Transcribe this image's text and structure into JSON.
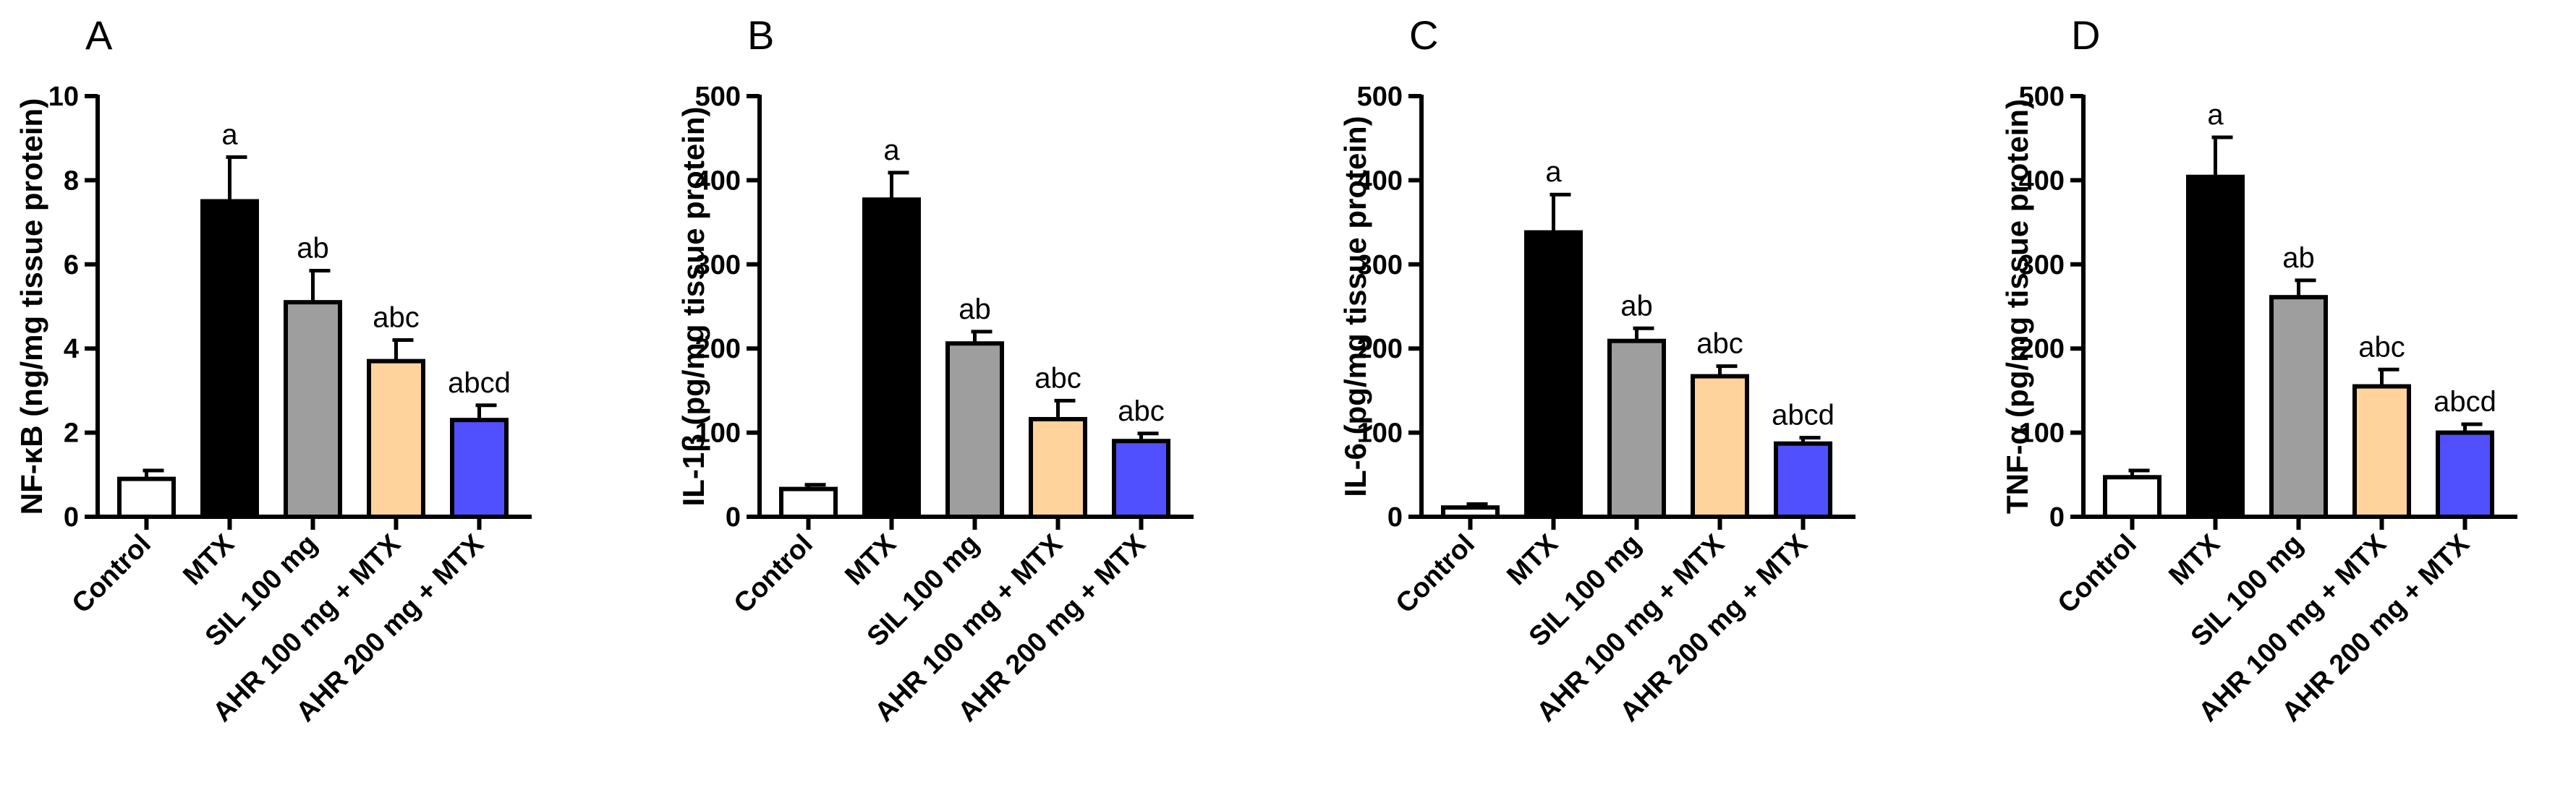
{
  "chart_data": [
    {
      "type": "bar",
      "panel": "A",
      "ylabel": "NF-κB (ng/mg tissue protein)",
      "ylim": [
        0,
        10
      ],
      "yticks": [
        0,
        2,
        4,
        6,
        8,
        10
      ],
      "categories": [
        "Control",
        "MTX",
        "SIL 100 mg",
        "AHR 100 mg + MTX",
        "AHR 200 mg + MTX"
      ],
      "values": [
        0.9,
        7.5,
        5.1,
        3.7,
        2.3
      ],
      "errors": [
        0.2,
        1.05,
        0.75,
        0.5,
        0.35
      ],
      "sig_labels": [
        "",
        "a",
        "ab",
        "abc",
        "abcd"
      ],
      "colors": [
        "#ffffff",
        "#000000",
        "#9e9e9e",
        "#ffd39b",
        "#5150ff"
      ]
    },
    {
      "type": "bar",
      "panel": "B",
      "ylabel": "IL-1β (pg/mg tissue protein)",
      "ylim": [
        0,
        500
      ],
      "yticks": [
        0,
        100,
        200,
        300,
        400,
        500
      ],
      "categories": [
        "Control",
        "MTX",
        "SIL 100 mg",
        "AHR 100 mg + MTX",
        "AHR 200 mg + MTX"
      ],
      "values": [
        33,
        377,
        206,
        116,
        90
      ],
      "errors": [
        5,
        32,
        14,
        22,
        9
      ],
      "sig_labels": [
        "",
        "a",
        "ab",
        "abc",
        "abc"
      ],
      "colors": [
        "#ffffff",
        "#000000",
        "#9e9e9e",
        "#ffd39b",
        "#5150ff"
      ]
    },
    {
      "type": "bar",
      "panel": "C",
      "ylabel": "IL-6 (pg/mg tissue protein)",
      "ylim": [
        0,
        500
      ],
      "yticks": [
        0,
        100,
        200,
        300,
        400,
        500
      ],
      "categories": [
        "Control",
        "MTX",
        "SIL 100 mg",
        "AHR 100 mg + MTX",
        "AHR 200 mg + MTX"
      ],
      "values": [
        11,
        338,
        209,
        167,
        87
      ],
      "errors": [
        4,
        45,
        15,
        12,
        7
      ],
      "sig_labels": [
        "",
        "a",
        "ab",
        "abc",
        "abcd"
      ],
      "colors": [
        "#ffffff",
        "#000000",
        "#9e9e9e",
        "#ffd39b",
        "#5150ff"
      ]
    },
    {
      "type": "bar",
      "panel": "D",
      "ylabel": "TNF-α (pg/mg tissue protein)",
      "ylim": [
        0,
        500
      ],
      "yticks": [
        0,
        100,
        200,
        300,
        400,
        500
      ],
      "categories": [
        "Control",
        "MTX",
        "SIL 100 mg",
        "AHR 100 mg + MTX",
        "AHR 200 mg + MTX"
      ],
      "values": [
        47,
        404,
        261,
        155,
        100
      ],
      "errors": [
        8,
        47,
        20,
        20,
        10
      ],
      "sig_labels": [
        "",
        "a",
        "ab",
        "abc",
        "abcd"
      ],
      "colors": [
        "#ffffff",
        "#000000",
        "#9e9e9e",
        "#ffd39b",
        "#5150ff"
      ]
    }
  ]
}
